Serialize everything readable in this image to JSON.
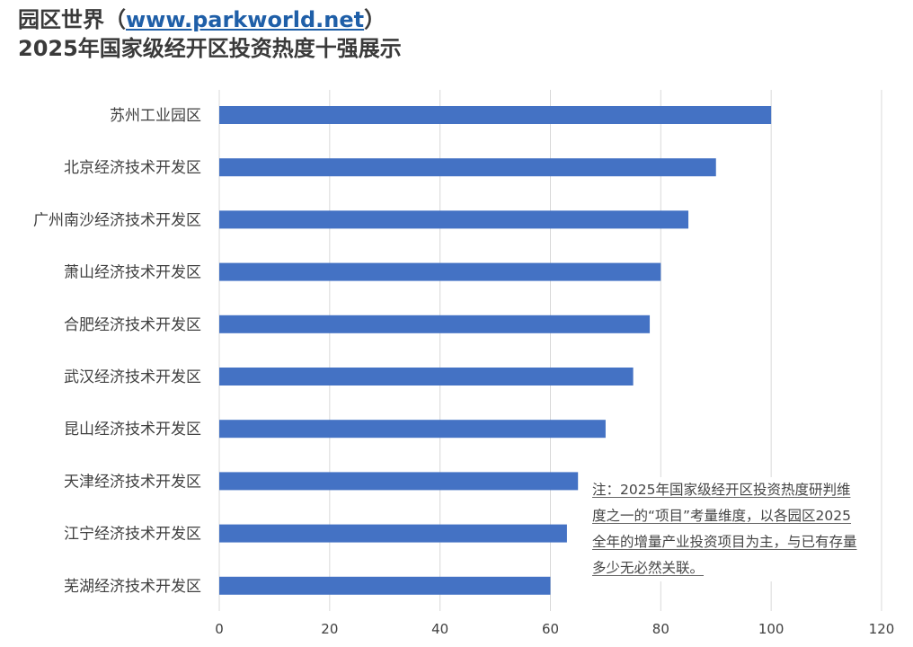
{
  "header": {
    "title_prefix": "园区世界（",
    "title_url": "www.parkworld.net",
    "title_suffix": "）",
    "title_line2": "2025年国家级经开区投资热度十强展示"
  },
  "note": {
    "text": "注：2025年国家级经开区投资热度研判维度之一的“项目”考量维度，以各园区2025全年的增量产业投资项目为主，与已有存量多少无必然关联。"
  },
  "chart_data": {
    "type": "bar",
    "orientation": "horizontal",
    "categories": [
      "苏州工业园区",
      "北京经济技术开发区",
      "广州南沙经济技术开发区",
      "萧山经济技术开发区",
      "合肥经济技术开发区",
      "武汉经济技术开发区",
      "昆山经济技术开发区",
      "天津经济技术开发区",
      "江宁经济技术开发区",
      "芜湖经济技术开发区"
    ],
    "values": [
      100,
      90,
      85,
      80,
      78,
      75,
      70,
      65,
      63,
      60
    ],
    "xlim": [
      0,
      120
    ],
    "xticks": [
      "0",
      "20",
      "40",
      "60",
      "80",
      "100",
      "120"
    ],
    "grid": true,
    "bar_color": "#4472c4",
    "grid_color": "#d9d9d9",
    "text_color": "#404040"
  }
}
